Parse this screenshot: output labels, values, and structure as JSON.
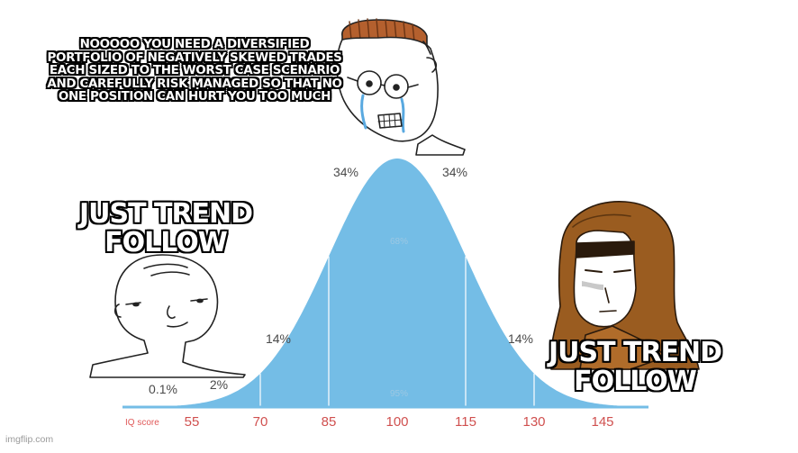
{
  "captions": {
    "top": "NOOOOO YOU NEED A DIVERSIFIED PORTFOLIO OF NEGATIVELY SKEWED TRADES EACH SIZED TO THE WORST CASE SCENARIO AND CAREFULLY RISK MANAGED SO THAT NO ONE POSITION CAN HURT YOU TOO MUCH",
    "left": "JUST TREND FOLLOW",
    "right": "JUST TREND FOLLOW"
  },
  "chart_data": {
    "type": "area",
    "xlabel": "IQ score",
    "ticks": [
      "55",
      "70",
      "85",
      "100",
      "115",
      "130",
      "145"
    ],
    "percent_labels": {
      "tail": "0.1%",
      "two": "2%",
      "fourteen_left": "14%",
      "fourteen_right": "14%",
      "thirtyfour_left": "34%",
      "thirtyfour_right": "34%",
      "sixtyeight": "68%",
      "ninetyfive": "95%"
    },
    "curve_color": "#74bde6"
  },
  "watermark": "imgflip.com",
  "characters": [
    "wojak-left-icon",
    "crying-soyjak-icon",
    "hooded-monk-icon"
  ]
}
